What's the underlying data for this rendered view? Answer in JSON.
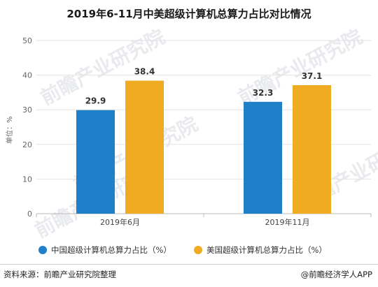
{
  "title": "2019年6-11月中美超级计算机总算力占比对比情况",
  "chart_data": {
    "type": "bar",
    "categories": [
      "2019年6月",
      "2019年11月"
    ],
    "series": [
      {
        "name": "中国超级计算机总算力占比（%）",
        "values": [
          29.9,
          32.3
        ],
        "color": "#1f7fc8"
      },
      {
        "name": "美国超级计算机总算力占比（%）",
        "values": [
          38.4,
          37.1
        ],
        "color": "#efab22"
      }
    ],
    "ylabel": "单位：%",
    "ylim": [
      0,
      50
    ],
    "yticks": [
      0,
      10,
      20,
      30,
      40,
      50
    ],
    "grid": true,
    "legend": "bottom"
  },
  "footer": {
    "source": "资料来源：前瞻产业研究院整理",
    "brand": "@前瞻经济学人APP"
  },
  "watermarks": [
    "前瞻产业研究院",
    "前瞻产业研究院",
    "前瞻产业研究院",
    "前瞻产业研究院",
    "前瞻产业研究院"
  ]
}
